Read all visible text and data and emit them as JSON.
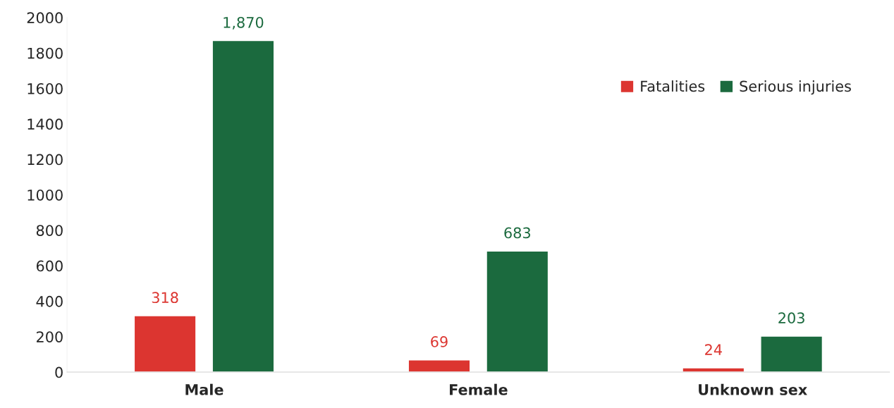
{
  "chart_data": {
    "type": "bar",
    "categories": [
      "Male",
      "Female",
      "Unknown sex"
    ],
    "series": [
      {
        "name": "Fatalities",
        "color": "#dc3530",
        "values": [
          318,
          69,
          24
        ],
        "value_labels": [
          "318",
          "69",
          "24"
        ]
      },
      {
        "name": "Serious injuries",
        "color": "#1b6a3e",
        "values": [
          1870,
          683,
          203
        ],
        "value_labels": [
          "1,870",
          "683",
          "203"
        ]
      }
    ],
    "ylim": [
      0,
      2000
    ],
    "yticks": [
      0,
      200,
      400,
      600,
      800,
      1000,
      1200,
      1400,
      1600,
      1800,
      2000
    ],
    "grid": false,
    "legend": "top right"
  }
}
